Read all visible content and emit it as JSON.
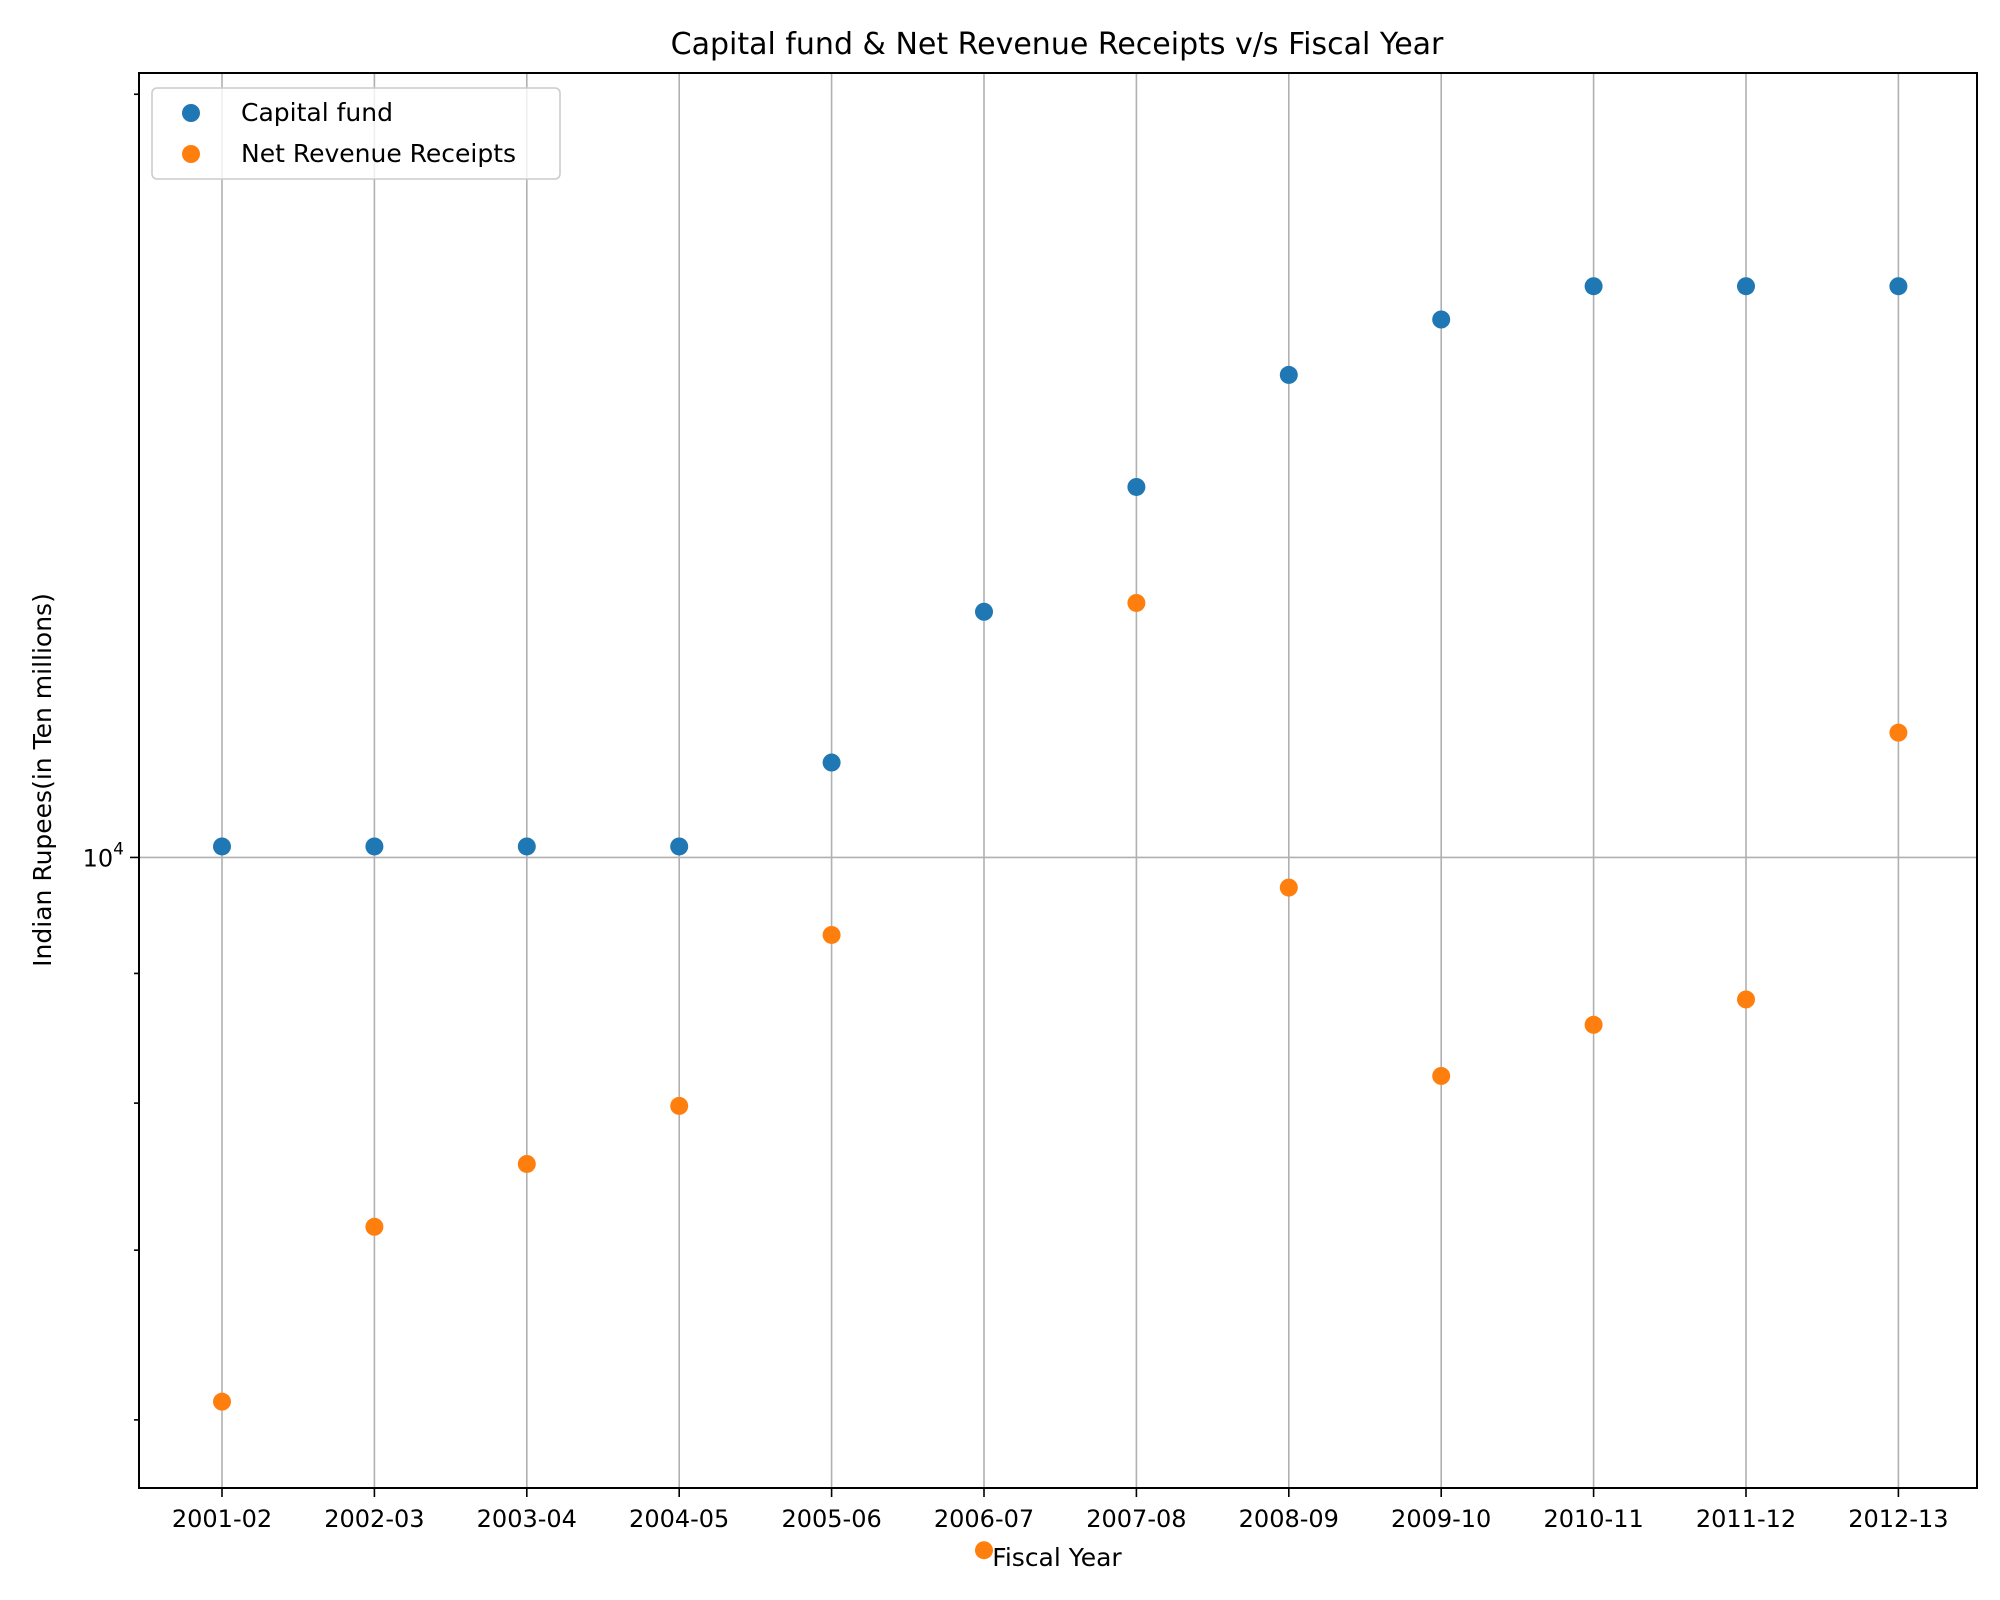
{
  "chart_data": {
    "type": "scatter",
    "title": "Capital fund & Net Revenue Receipts v/s Fiscal Year",
    "xlabel": "Fiscal Year",
    "ylabel": "Indian Rupees(in Ten millions)",
    "yscale": "log",
    "ylim": [
      5640,
      20390
    ],
    "ytick_label": "10^4",
    "grid": "on",
    "legend_position": "top-left",
    "categories": [
      "2001-02",
      "2002-03",
      "2003-04",
      "2004-05",
      "2005-06",
      "2006-07",
      "2007-08",
      "2008-09",
      "2009-10",
      "2010-11",
      "2011-12",
      "2012-13"
    ],
    "series": [
      {
        "name": "Capital fund",
        "color": "#1f77b4",
        "values": [
          10100,
          10100,
          10100,
          10100,
          10900,
          12500,
          14000,
          15500,
          16300,
          16800,
          16800,
          16800
        ]
      },
      {
        "name": "Net Revenue Receipts",
        "color": "#ff7f0e",
        "values": [
          6100,
          7150,
          7570,
          7980,
          9320,
          5330,
          12600,
          9730,
          8200,
          8590,
          8790,
          11200
        ]
      }
    ]
  }
}
